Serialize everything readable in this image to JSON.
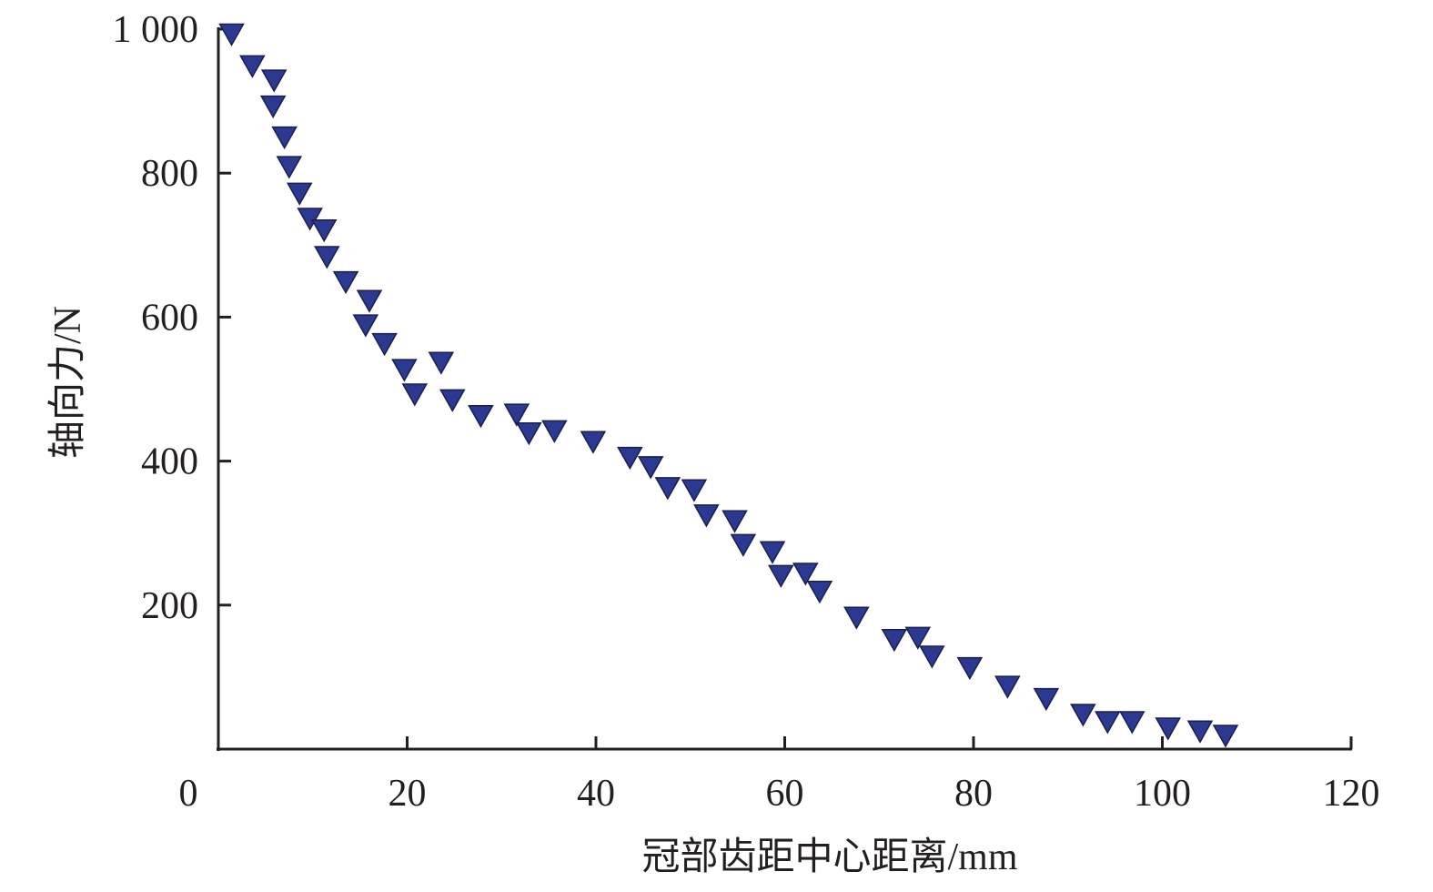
{
  "chart_data": {
    "type": "scatter",
    "title": "",
    "xlabel": "冠部齿距中心距离/mm",
    "ylabel": "轴向力/N",
    "xlim": [
      0,
      120
    ],
    "ylim": [
      0,
      1000
    ],
    "x_ticks": [
      "0",
      "20",
      "40",
      "60",
      "80",
      "100",
      "120"
    ],
    "y_ticks": [
      "200",
      "400",
      "600",
      "800",
      "1 000"
    ],
    "grid": false,
    "marker": "down-triangle",
    "marker_color": "#2b3990",
    "series": [
      {
        "x": [
          1.4,
          3.6,
          5.9,
          5.8,
          7.0,
          7.5,
          8.6,
          9.7,
          11.2,
          11.5,
          13.5,
          16.0,
          15.6,
          17.6,
          19.7,
          23.6,
          20.8,
          24.8,
          27.8,
          31.6,
          32.9,
          35.6,
          39.7,
          43.6,
          45.8,
          47.6,
          50.4,
          51.7,
          54.7,
          55.6,
          58.7,
          59.6,
          62.2,
          63.7,
          67.6,
          71.6,
          74.1,
          75.6,
          79.6,
          83.6,
          87.7,
          91.6,
          94.2,
          96.8,
          100.6,
          104.0,
          106.7
        ],
        "y": [
          993,
          949,
          929,
          893,
          850,
          809,
          772,
          737,
          721,
          684,
          649,
          623,
          589,
          563,
          527,
          537,
          493,
          485,
          463,
          465,
          439,
          442,
          427,
          405,
          392,
          363,
          360,
          325,
          317,
          284,
          274,
          241,
          244,
          219,
          183,
          152,
          155,
          129,
          113,
          87,
          70,
          48,
          38,
          38,
          29,
          25,
          19
        ]
      }
    ]
  }
}
